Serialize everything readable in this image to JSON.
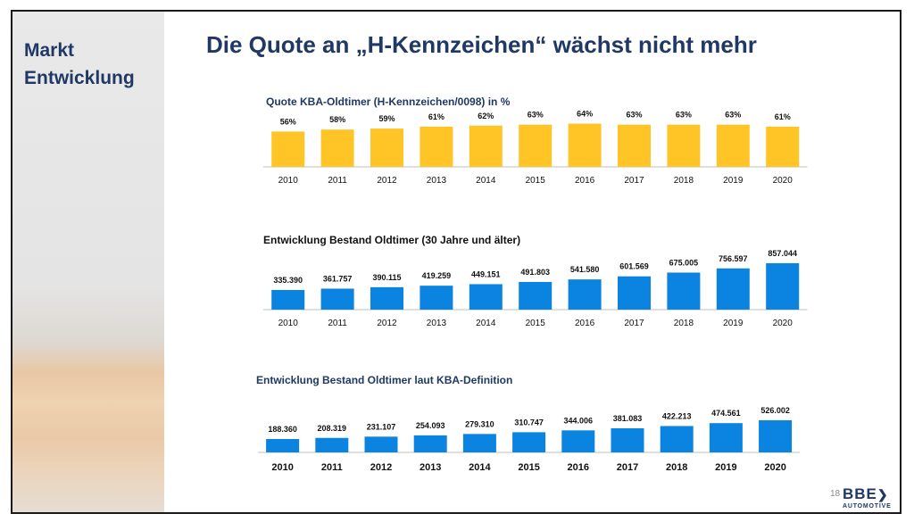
{
  "slide": {
    "sidebar_title": "Markt\nEntwicklung",
    "title": "Die Quote an „H-Kennzeichen“ wächst nicht mehr",
    "page_number": "18",
    "logo": {
      "mark": "BBE",
      "sub": "AUTOMOTIVE"
    }
  },
  "colors": {
    "navy": "#1f3864",
    "yellow": "#ffc425",
    "blue": "#0a84e0"
  },
  "chart_data": [
    {
      "type": "bar",
      "title": "Quote KBA-Oldtimer (H-Kennzeichen/0098) in %",
      "categories": [
        "2010",
        "2011",
        "2012",
        "2013",
        "2014",
        "2015",
        "2016",
        "2017",
        "2018",
        "2019",
        "2020"
      ],
      "values": [
        56,
        58,
        59,
        61,
        62,
        63,
        64,
        63,
        63,
        63,
        61
      ],
      "labels": [
        "56%",
        "58%",
        "59%",
        "61%",
        "62%",
        "63%",
        "64%",
        "63%",
        "63%",
        "63%",
        "61%"
      ],
      "unit": "%",
      "color": "#ffc425",
      "grid": false,
      "legend": "none"
    },
    {
      "type": "bar",
      "title": "Entwicklung Bestand Oldtimer (30 Jahre und älter)",
      "categories": [
        "2010",
        "2011",
        "2012",
        "2013",
        "2014",
        "2015",
        "2016",
        "2017",
        "2018",
        "2019",
        "2020"
      ],
      "values": [
        335390,
        361757,
        390115,
        419259,
        449151,
        491803,
        541580,
        601569,
        675005,
        756597,
        857044
      ],
      "labels": [
        "335.390",
        "361.757",
        "390.115",
        "419.259",
        "449.151",
        "491.803",
        "541.580",
        "601.569",
        "675.005",
        "756.597",
        "857.044"
      ],
      "color": "#0a84e0",
      "grid": false,
      "legend": "none"
    },
    {
      "type": "bar",
      "title": "Entwicklung Bestand Oldtimer laut KBA-Definition",
      "categories": [
        "2010",
        "2011",
        "2012",
        "2013",
        "2014",
        "2015",
        "2016",
        "2017",
        "2018",
        "2019",
        "2020"
      ],
      "values": [
        188360,
        208319,
        231107,
        254093,
        279310,
        310747,
        344006,
        381083,
        422213,
        474561,
        526002
      ],
      "labels": [
        "188.360",
        "208.319",
        "231.107",
        "254.093",
        "279.310",
        "310.747",
        "344.006",
        "381.083",
        "422.213",
        "474.561",
        "526.002"
      ],
      "color": "#0a84e0",
      "grid": false,
      "legend": "none"
    }
  ]
}
